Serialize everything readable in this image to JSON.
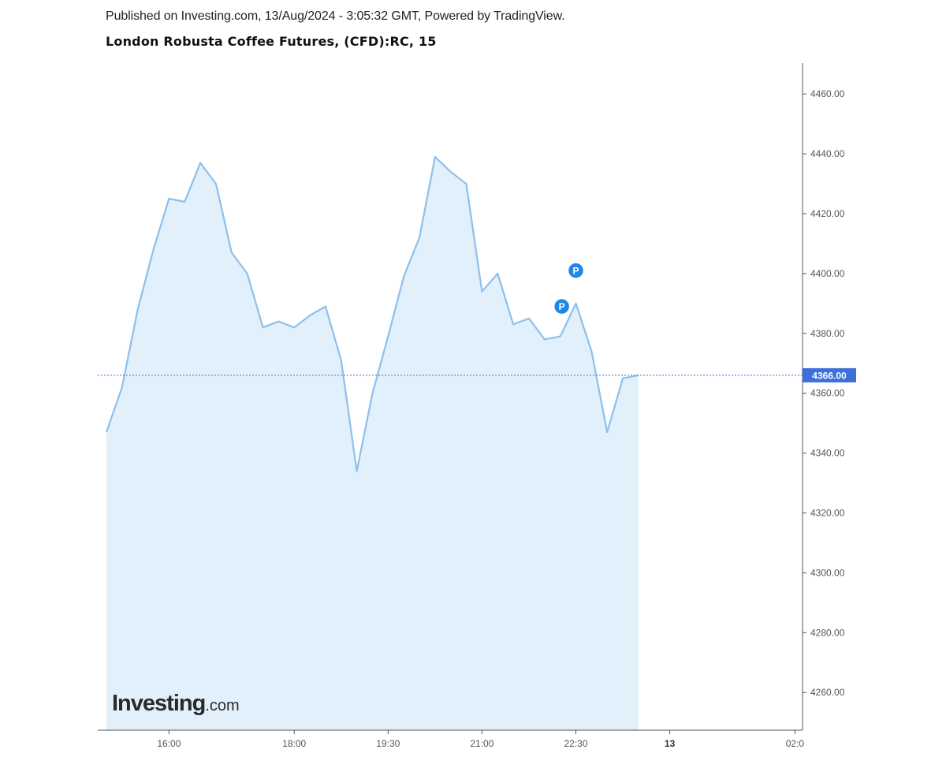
{
  "header": {
    "published": "Published on Investing.com, 13/Aug/2024 - 3:05:32 GMT, Powered by TradingView.",
    "title": "London Robusta Coffee Futures, (CFD):RC, 15"
  },
  "logo": {
    "main": "Investing",
    "suffix": ".com"
  },
  "colors": {
    "line": "#8cc0ee",
    "area": "#e1f0fa",
    "price_line": "#3d6fdb",
    "price_label_bg": "#3d6fdb",
    "marker": "#1e88e5",
    "axis": "#555555"
  },
  "chart_data": {
    "type": "area",
    "title": "London Robusta Coffee Futures, (CFD):RC, 15",
    "ylim": [
      4246,
      4470
    ],
    "y_ticks": [
      "4260.00",
      "4280.00",
      "4300.00",
      "4320.00",
      "4340.00",
      "4360.00",
      "4380.00",
      "4400.00",
      "4420.00",
      "4440.00",
      "4460.00"
    ],
    "y_tick_values": [
      4260,
      4280,
      4300,
      4320,
      4340,
      4360,
      4380,
      4400,
      4420,
      4440,
      4460
    ],
    "x_ticks": [
      {
        "label": "16:00",
        "index": 4
      },
      {
        "label": "18:00",
        "index": 12
      },
      {
        "label": "19:30",
        "index": 18
      },
      {
        "label": "21:00",
        "index": 24
      },
      {
        "label": "22:30",
        "index": 30
      },
      {
        "label": "13",
        "index": 36,
        "bold": true
      },
      {
        "label": "02:0",
        "index": 44
      }
    ],
    "x_index_range": [
      -0.5,
      45
    ],
    "series": [
      {
        "values": [
          4347,
          4362,
          4388,
          4408,
          4425,
          4424,
          4437,
          4430,
          4407,
          4400,
          4382,
          4384,
          4382,
          4386,
          4389,
          4371,
          4334,
          4360,
          4379,
          4399,
          4412,
          4439,
          4434,
          4430,
          4394,
          4400,
          4383,
          4385,
          4378,
          4379,
          4390,
          4374,
          4347,
          4365,
          4366
        ]
      }
    ],
    "last_price": 4366,
    "last_price_label": "4366.00",
    "markers": [
      {
        "label": "P",
        "index": 29,
        "value": 4389
      },
      {
        "label": "P",
        "index": 30,
        "value": 4401
      }
    ],
    "grid": false,
    "legend": "none"
  }
}
